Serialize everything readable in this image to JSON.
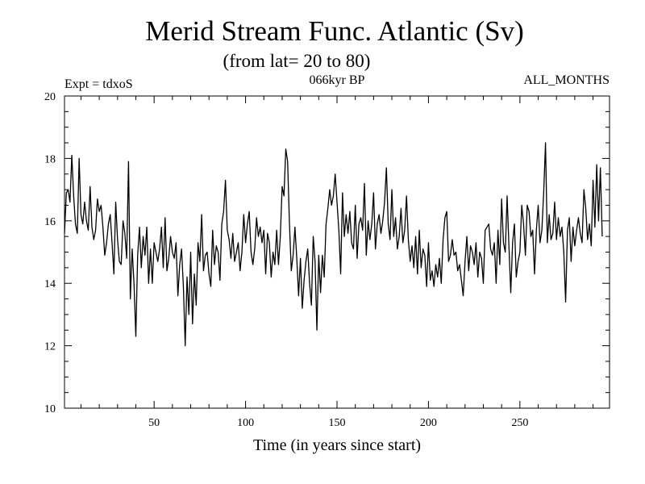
{
  "chart_data": {
    "type": "line",
    "title": "Merid Stream Func. Atlantic (Sv)",
    "subtitle": "(from lat= 20 to 80)",
    "header_left": "Expt = tdxoS",
    "header_center": "066kyr BP",
    "header_right": "ALL_MONTHS",
    "xlabel": "Time (in years since start)",
    "ylabel": "",
    "xlim": [
      1,
      299
    ],
    "ylim": [
      10,
      20
    ],
    "x_ticks": [
      50,
      100,
      150,
      200,
      250
    ],
    "y_ticks": [
      10,
      12,
      14,
      16,
      18,
      20
    ],
    "grid": false,
    "line_color": "#000000",
    "series": [
      {
        "x_start": 1,
        "x_step": 1,
        "values": [
          15.6,
          16.9,
          17.0,
          16.6,
          18.1,
          16.8,
          15.9,
          15.6,
          18.0,
          16.2,
          15.9,
          16.6,
          16.0,
          15.7,
          17.1,
          15.8,
          15.4,
          15.7,
          16.7,
          16.3,
          16.5,
          15.8,
          14.9,
          15.3,
          15.9,
          16.2,
          15.3,
          14.3,
          16.6,
          15.4,
          14.7,
          14.6,
          16.0,
          15.6,
          14.8,
          17.9,
          13.5,
          15.1,
          14.0,
          12.3,
          14.9,
          15.8,
          14.5,
          15.5,
          14.9,
          15.8,
          14.0,
          15.1,
          14.0,
          15.3,
          15.0,
          14.7,
          15.1,
          15.8,
          14.5,
          16.1,
          14.4,
          14.8,
          15.5,
          15.0,
          14.8,
          15.3,
          13.6,
          14.6,
          15.1,
          13.9,
          12.0,
          14.2,
          13.0,
          15.0,
          12.7,
          14.3,
          13.3,
          15.3,
          14.7,
          16.2,
          14.4,
          14.9,
          15.0,
          14.3,
          13.9,
          15.7,
          14.6,
          15.2,
          15.0,
          14.1,
          15.9,
          16.3,
          17.3,
          15.7,
          15.4,
          14.8,
          15.6,
          14.7,
          15.0,
          15.3,
          14.4,
          15.0,
          16.2,
          15.3,
          15.9,
          16.3,
          15.0,
          14.6,
          15.1,
          16.1,
          15.5,
          15.8,
          15.3,
          15.7,
          14.3,
          15.6,
          15.3,
          14.2,
          15.0,
          14.6,
          15.7,
          14.6,
          15.5,
          17.1,
          16.8,
          18.3,
          17.9,
          15.9,
          14.4,
          14.9,
          15.8,
          14.8,
          13.6,
          14.8,
          13.2,
          14.1,
          14.7,
          15.1,
          14.0,
          13.3,
          15.5,
          14.7,
          12.5,
          14.9,
          13.7,
          14.9,
          14.2,
          15.9,
          16.4,
          17.0,
          16.5,
          16.8,
          17.5,
          16.6,
          15.7,
          14.3,
          16.9,
          15.5,
          16.2,
          15.6,
          16.3,
          15.3,
          15.1,
          16.5,
          14.8,
          15.9,
          16.1,
          15.7,
          17.2,
          14.9,
          16.0,
          15.4,
          15.9,
          16.9,
          15.1,
          15.9,
          16.2,
          15.6,
          16.0,
          16.6,
          17.7,
          15.9,
          15.4,
          17.0,
          15.5,
          16.1,
          15.1,
          15.5,
          16.4,
          15.3,
          15.7,
          16.8,
          15.4,
          14.7,
          15.2,
          14.5,
          15.5,
          14.3,
          15.7,
          14.5,
          15.1,
          14.9,
          13.9,
          15.3,
          14.1,
          14.4,
          13.9,
          14.6,
          14.2,
          14.8,
          14.0,
          15.4,
          16.1,
          16.3,
          14.7,
          14.9,
          15.4,
          14.9,
          15.0,
          14.4,
          14.6,
          14.1,
          13.6,
          14.7,
          15.5,
          14.4,
          15.2,
          15.0,
          14.6,
          15.3,
          14.2,
          15.0,
          14.8,
          14.0,
          15.7,
          15.8,
          15.9,
          15.1,
          14.9,
          15.3,
          14.0,
          15.7,
          14.6,
          16.7,
          15.3,
          15.0,
          16.8,
          15.2,
          13.7,
          15.3,
          15.9,
          14.2,
          14.7,
          15.0,
          16.5,
          15.9,
          14.9,
          16.5,
          16.3,
          15.5,
          15.7,
          14.3,
          15.7,
          16.5,
          15.3,
          15.7,
          16.9,
          18.5,
          15.3,
          16.2,
          15.4,
          15.6,
          16.6,
          15.4,
          16.1,
          15.5,
          15.8,
          15.0,
          13.4,
          15.7,
          16.1,
          14.7,
          15.8,
          15.2,
          15.7,
          16.1,
          15.6,
          15.3,
          17.0,
          16.4,
          15.4,
          15.9,
          15.2,
          17.3,
          15.8,
          17.8,
          16.0,
          17.7,
          15.5
        ]
      }
    ]
  }
}
